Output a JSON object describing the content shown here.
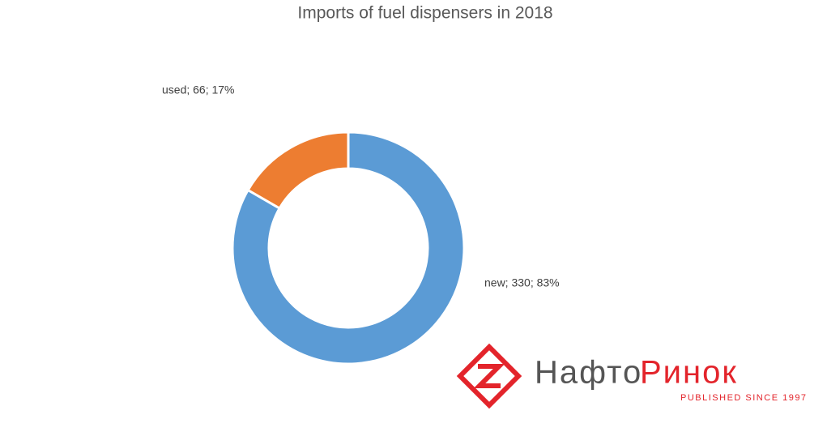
{
  "chart_data": {
    "type": "donut",
    "title": "Imports of fuel dispensers in 2018",
    "categories": [
      "new",
      "used"
    ],
    "values": [
      330,
      66
    ],
    "value_labels": [
      "new; 330; 83%",
      "used; 66; 17%"
    ],
    "colors": [
      "#5b9bd5",
      "#ed7d31"
    ]
  },
  "logo": {
    "name": [
      "Нафто",
      "Ринок"
    ],
    "tagline": "PUBLISHED SINCE 1997"
  }
}
